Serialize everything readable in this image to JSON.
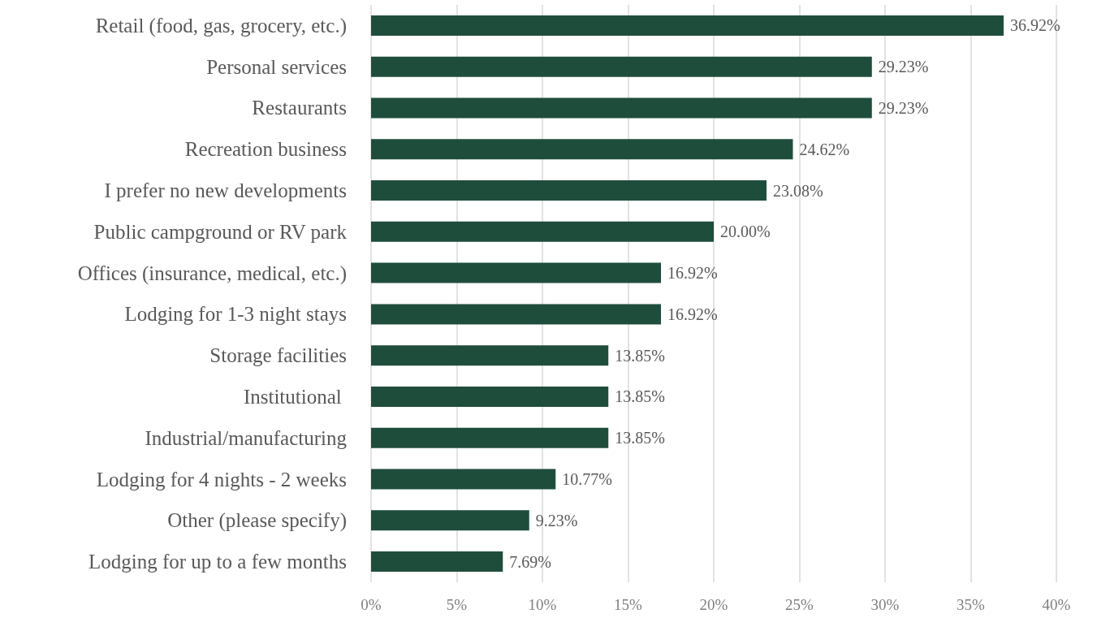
{
  "chart_data": {
    "type": "bar",
    "orientation": "horizontal",
    "categories": [
      "Retail (food, gas, grocery, etc.)",
      "Personal services",
      "Restaurants",
      "Recreation business",
      "I prefer no new developments",
      "Public campground or RV park",
      "Offices (insurance, medical, etc.)",
      "Lodging for 1-3 night stays",
      "Storage facilities",
      "Institutional ",
      "Industrial/manufacturing",
      "Lodging for 4 nights - 2 weeks",
      "Other (please specify)",
      "Lodging for up to a few months"
    ],
    "values": [
      36.92,
      29.23,
      29.23,
      24.62,
      23.08,
      20.0,
      16.92,
      16.92,
      13.85,
      13.85,
      13.85,
      10.77,
      9.23,
      7.69
    ],
    "value_labels": [
      "36.92%",
      "29.23%",
      "29.23%",
      "24.62%",
      "23.08%",
      "20.00%",
      "16.92%",
      "16.92%",
      "13.85%",
      "13.85%",
      "13.85%",
      "10.77%",
      "9.23%",
      "7.69%"
    ],
    "color": "#1f4d3c",
    "xlim": [
      0,
      40
    ],
    "xticks": [
      {
        "value": 0,
        "label": "0%"
      },
      {
        "value": 5,
        "label": "5%"
      },
      {
        "value": 10,
        "label": "10%"
      },
      {
        "value": 15,
        "label": "15%"
      },
      {
        "value": 20,
        "label": "20%"
      },
      {
        "value": 25,
        "label": "25%"
      },
      {
        "value": 30,
        "label": "30%"
      },
      {
        "value": 35,
        "label": "35%"
      },
      {
        "value": 40,
        "label": "40%"
      }
    ],
    "grid": "x"
  }
}
